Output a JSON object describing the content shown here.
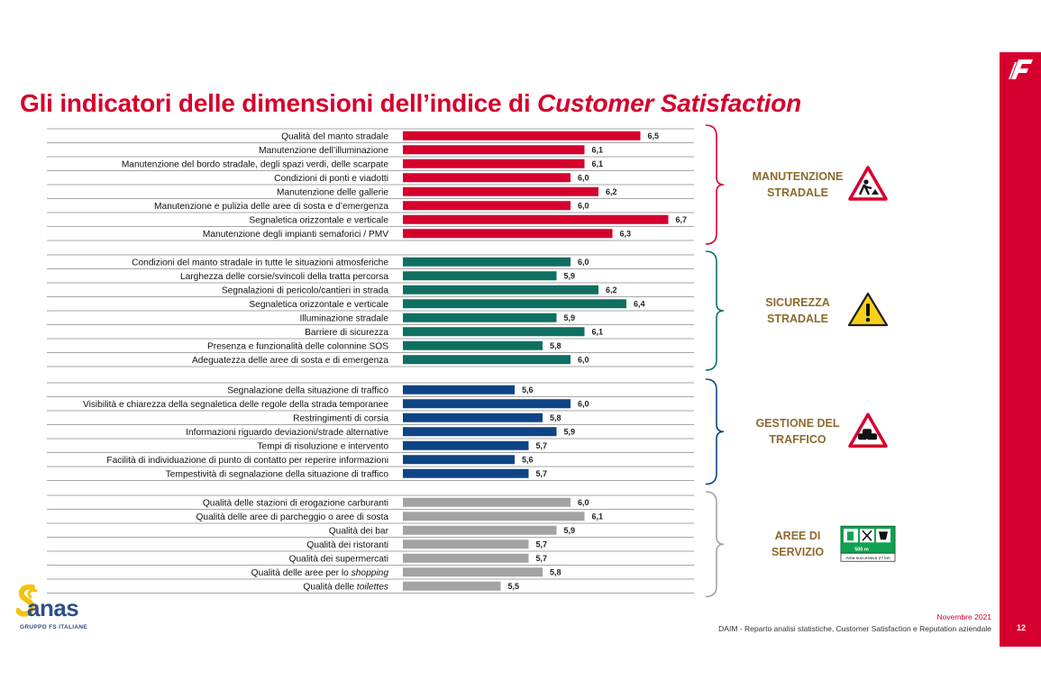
{
  "title_main": "Gli indicatori delle dimensioni dell’indice di ",
  "title_italic": "Customer Satisfaction",
  "footer": {
    "date": "Novembre 2021",
    "department": "DAIM - Reparto analisi statistiche, Customer Satisfaction e Reputation aziendale",
    "page": "12"
  },
  "logo": {
    "brand": "anas",
    "subtitle": "GRUPPO FS ITALIANE"
  },
  "colors": {
    "accent": "#d6002e",
    "manutenzione": "#d6002e",
    "sicurezza": "#0f7062",
    "gestione": "#0e4485",
    "aree": "#a3a3a3",
    "group_label": "#8c6a2e"
  },
  "chart_data": {
    "type": "bar",
    "orientation": "horizontal",
    "value_range": [
      4.8,
      7.0
    ],
    "groups": [
      {
        "name": "MANUTENZIONE STRADALE",
        "name_lines": [
          "MANUTENZIONE",
          "STRADALE"
        ],
        "icon": "road-works-sign-icon",
        "color": "#d6002e",
        "items": [
          {
            "label": "Qualità del manto stradale",
            "value": 6.5,
            "value_label": "6,5"
          },
          {
            "label": "Manutenzione dell’illuminazione",
            "value": 6.1,
            "value_label": "6,1"
          },
          {
            "label": "Manutenzione del bordo stradale, degli spazi verdi, delle scarpate",
            "value": 6.1,
            "value_label": "6,1"
          },
          {
            "label": "Condizioni di ponti e viadotti",
            "value": 6.0,
            "value_label": "6,0"
          },
          {
            "label": "Manutenzione delle gallerie",
            "value": 6.2,
            "value_label": "6,2"
          },
          {
            "label": "Manutenzione e pulizia delle aree di sosta e d’emergenza",
            "value": 6.0,
            "value_label": "6,0"
          },
          {
            "label": "Segnaletica orizzontale e verticale",
            "value": 6.7,
            "value_label": "6,7"
          },
          {
            "label": "Manutenzione degli impianti semaforici / PMV",
            "value": 6.3,
            "value_label": "6,3"
          }
        ]
      },
      {
        "name": "SICUREZZA STRADALE",
        "name_lines": [
          "SICUREZZA",
          "STRADALE"
        ],
        "icon": "warning-sign-icon",
        "color": "#0f7062",
        "items": [
          {
            "label": "Condizioni del manto stradale in tutte le situazioni atmosferiche",
            "value": 6.0,
            "value_label": "6,0"
          },
          {
            "label": "Larghezza delle corsie/svincoli della tratta percorsa",
            "value": 5.9,
            "value_label": "5,9"
          },
          {
            "label": "Segnalazioni di pericolo/cantieri in strada",
            "value": 6.2,
            "value_label": "6,2"
          },
          {
            "label": "Segnaletica orizzontale e verticale",
            "value": 6.4,
            "value_label": "6,4"
          },
          {
            "label": "Illuminazione stradale",
            "value": 5.9,
            "value_label": "5,9"
          },
          {
            "label": "Barriere di sicurezza",
            "value": 6.1,
            "value_label": "6,1"
          },
          {
            "label": "Presenza e funzionalità delle colonnine SOS",
            "value": 5.8,
            "value_label": "5,8"
          },
          {
            "label": "Adeguatezza delle aree di sosta e di emergenza",
            "value": 6.0,
            "value_label": "6,0"
          }
        ]
      },
      {
        "name": "GESTIONE DEL TRAFFICO",
        "name_lines": [
          "GESTIONE DEL",
          "TRAFFICO"
        ],
        "icon": "traffic-queue-sign-icon",
        "color": "#0e4485",
        "items": [
          {
            "label": "Segnalazione della situazione di traffico",
            "value": 5.6,
            "value_label": "5,6"
          },
          {
            "label": "Visibilità e chiarezza della segnaletica delle regole della strada temporanee",
            "value": 6.0,
            "value_label": "6,0"
          },
          {
            "label": "Restringimenti di corsia",
            "value": 5.8,
            "value_label": "5,8"
          },
          {
            "label": "Informazioni  riguardo deviazioni/strade alternative",
            "value": 5.9,
            "value_label": "5,9"
          },
          {
            "label": "Tempi di risoluzione e intervento",
            "value": 5.7,
            "value_label": "5,7"
          },
          {
            "label": "Facilità di individuazione di punto di contatto  per reperire informazioni",
            "value": 5.6,
            "value_label": "5,6"
          },
          {
            "label": "Tempestività di segnalazione  della situazione di traffico",
            "value": 5.7,
            "value_label": "5,7"
          }
        ]
      },
      {
        "name": "AREE DI SERVIZIO",
        "name_lines": [
          "AREE DI",
          "SERVIZIO"
        ],
        "icon": "service-area-sign-icon",
        "color": "#a3a3a3",
        "sign_text": {
          "distance": "500 m",
          "next": "Area successiva 27 km"
        },
        "items": [
          {
            "label": "Qualità delle stazioni di erogazione carburanti",
            "value": 6.0,
            "value_label": "6,0"
          },
          {
            "label": "Qualità delle aree di parcheggio o aree di sosta",
            "value": 6.1,
            "value_label": "6,1"
          },
          {
            "label": "Qualità dei bar",
            "value": 5.9,
            "value_label": "5,9"
          },
          {
            "label": "Qualità dei ristoranti",
            "value": 5.7,
            "value_label": "5,7"
          },
          {
            "label": "Qualità dei supermercati",
            "value": 5.7,
            "value_label": "5,7"
          },
          {
            "label": "Qualità delle aree per lo ",
            "label_italic": "shopping",
            "value": 5.8,
            "value_label": "5,8"
          },
          {
            "label": "Qualità delle ",
            "label_italic": "toilettes",
            "value": 5.5,
            "value_label": "5,5"
          }
        ]
      }
    ]
  }
}
